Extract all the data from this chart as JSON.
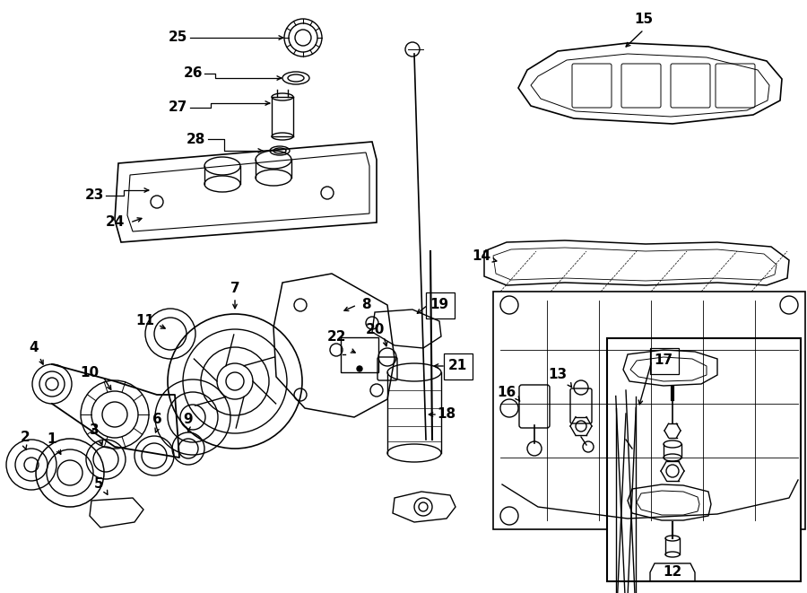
{
  "bg_color": "#ffffff",
  "line_color": "#000000",
  "fig_width": 9.0,
  "fig_height": 6.61,
  "dpi": 100,
  "lw": 1.0
}
